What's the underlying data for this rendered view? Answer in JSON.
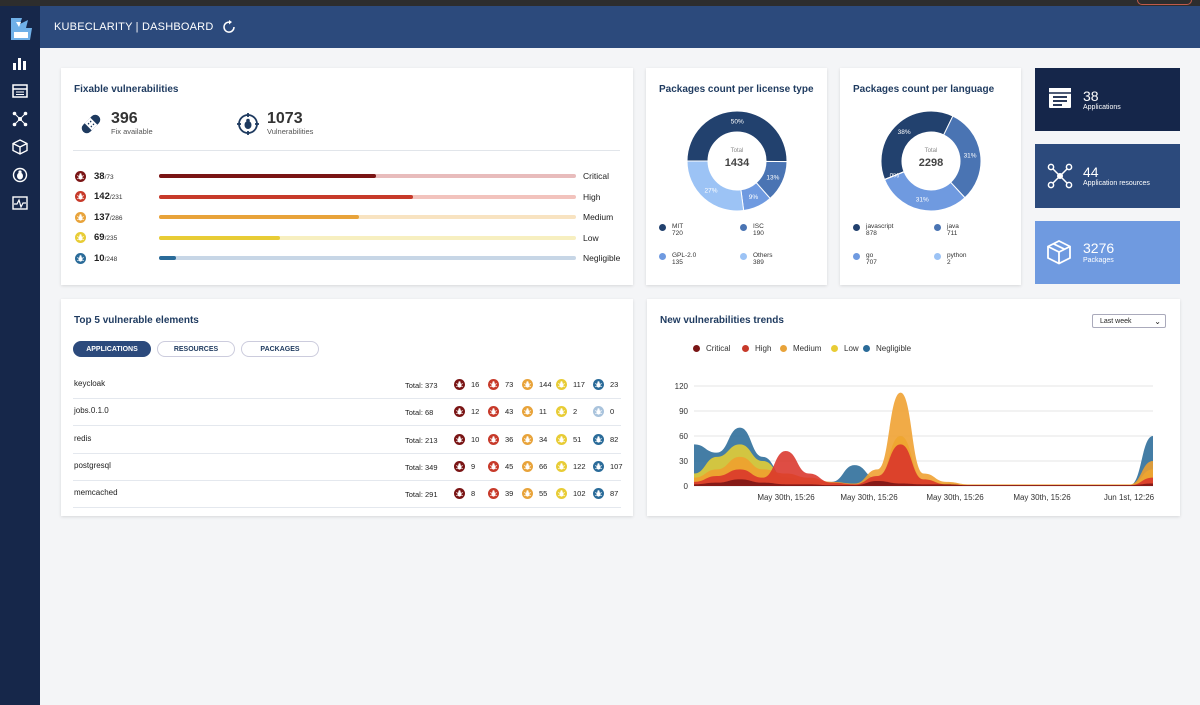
{
  "header": {
    "title": "KUBECLARITY | DASHBOARD"
  },
  "colors": {
    "critical": "#7a1515",
    "high": "#c73a2a",
    "medium": "#e8a33a",
    "low": "#e8cc35",
    "negligible": "#2a6b99",
    "navy": "#15264a",
    "header": "#2c4a7c"
  },
  "fixable": {
    "title": "Fixable vulnerabilities",
    "fix_available": {
      "value": "396",
      "label": "Fix available"
    },
    "vulnerabilities": {
      "value": "1073",
      "label": "Vulnerabilities"
    },
    "rows": [
      {
        "label": "Critical",
        "fixed": "38",
        "total": "/73",
        "fraction": 0.52
      },
      {
        "label": "High",
        "fixed": "142",
        "total": "/231",
        "fraction": 0.61
      },
      {
        "label": "Medium",
        "fixed": "137",
        "total": "/286",
        "fraction": 0.48
      },
      {
        "label": "Low",
        "fixed": "69",
        "total": "/235",
        "fraction": 0.29
      },
      {
        "label": "Negligible",
        "fixed": "10",
        "total": "/248",
        "fraction": 0.04
      }
    ]
  },
  "license_chart": {
    "title": "Packages count per license type",
    "total_label": "Total",
    "total": "1434",
    "legend": [
      {
        "name": "MIT",
        "value": "720"
      },
      {
        "name": "ISC",
        "value": "190"
      },
      {
        "name": "GPL-2.0",
        "value": "135"
      },
      {
        "name": "Others",
        "value": "389"
      }
    ],
    "slice_labels": [
      "50%",
      "13%",
      "9%",
      "27%"
    ]
  },
  "language_chart": {
    "title": "Packages count per language",
    "total_label": "Total",
    "total": "2298",
    "legend": [
      {
        "name": "javascript",
        "value": "878"
      },
      {
        "name": "java",
        "value": "711"
      },
      {
        "name": "go",
        "value": "707"
      },
      {
        "name": "python",
        "value": "2"
      }
    ],
    "slice_labels": [
      "38%",
      "31%",
      "31%",
      "0%"
    ]
  },
  "tiles": [
    {
      "value": "38",
      "label": "Applications",
      "icon": "applications-icon"
    },
    {
      "value": "44",
      "label": "Application resources",
      "icon": "resources-icon"
    },
    {
      "value": "3276",
      "label": "Packages",
      "icon": "packages-icon"
    }
  ],
  "top5": {
    "title": "Top 5 vulnerable elements",
    "tabs": [
      "APPLICATIONS",
      "RESOURCES",
      "PACKAGES"
    ],
    "rows": [
      {
        "name": "keycloak",
        "total": "Total: 373",
        "counts": [
          "16",
          "73",
          "144",
          "117",
          "23"
        ]
      },
      {
        "name": "jobs.0.1.0",
        "total": "Total: 68",
        "counts": [
          "12",
          "43",
          "11",
          "2",
          "0"
        ]
      },
      {
        "name": "redis",
        "total": "Total: 213",
        "counts": [
          "10",
          "36",
          "34",
          "51",
          "82"
        ]
      },
      {
        "name": "postgresql",
        "total": "Total: 349",
        "counts": [
          "9",
          "45",
          "66",
          "122",
          "107"
        ]
      },
      {
        "name": "memcached",
        "total": "Total: 291",
        "counts": [
          "8",
          "39",
          "55",
          "102",
          "87"
        ]
      }
    ]
  },
  "trends": {
    "title": "New vulnerabilities trends",
    "period": "Last week",
    "legend": [
      "Critical",
      "High",
      "Medium",
      "Low",
      "Negligible"
    ],
    "y_ticks": [
      "120",
      "90",
      "60",
      "30",
      "0"
    ],
    "x_ticks": [
      "May 30th, 15:26",
      "May 30th, 15:26",
      "May 30th, 15:26",
      "May 30th, 15:26",
      "Jun 1st, 12:26"
    ]
  },
  "chart_data": [
    {
      "type": "pie",
      "title": "Packages count per license type",
      "categories": [
        "MIT",
        "ISC",
        "GPL-2.0",
        "Others"
      ],
      "values": [
        720,
        190,
        135,
        389
      ]
    },
    {
      "type": "pie",
      "title": "Packages count per language",
      "categories": [
        "javascript",
        "java",
        "go",
        "python"
      ],
      "values": [
        878,
        711,
        707,
        2
      ]
    },
    {
      "type": "area",
      "title": "New vulnerabilities trends",
      "ylim": [
        0,
        120
      ],
      "series": [
        {
          "name": "Critical",
          "values": [
            2,
            4,
            8,
            4,
            2,
            2,
            1,
            1,
            6,
            3,
            2,
            2,
            1,
            1,
            1,
            1,
            1,
            1,
            1,
            1,
            3
          ]
        },
        {
          "name": "High",
          "values": [
            5,
            12,
            20,
            10,
            42,
            15,
            4,
            2,
            12,
            50,
            8,
            2,
            1,
            1,
            1,
            1,
            1,
            1,
            1,
            1,
            10
          ]
        },
        {
          "name": "Medium",
          "values": [
            10,
            20,
            35,
            20,
            15,
            10,
            5,
            3,
            20,
            112,
            15,
            5,
            2,
            2,
            2,
            2,
            2,
            2,
            2,
            2,
            30
          ]
        },
        {
          "name": "Low",
          "values": [
            15,
            35,
            50,
            30,
            10,
            5,
            3,
            2,
            10,
            60,
            8,
            3,
            1,
            1,
            1,
            1,
            1,
            1,
            1,
            1,
            20
          ]
        },
        {
          "name": "Negligible",
          "values": [
            50,
            40,
            70,
            35,
            8,
            5,
            5,
            25,
            8,
            10,
            5,
            3,
            1,
            1,
            1,
            1,
            1,
            1,
            1,
            1,
            60
          ]
        }
      ]
    }
  ]
}
